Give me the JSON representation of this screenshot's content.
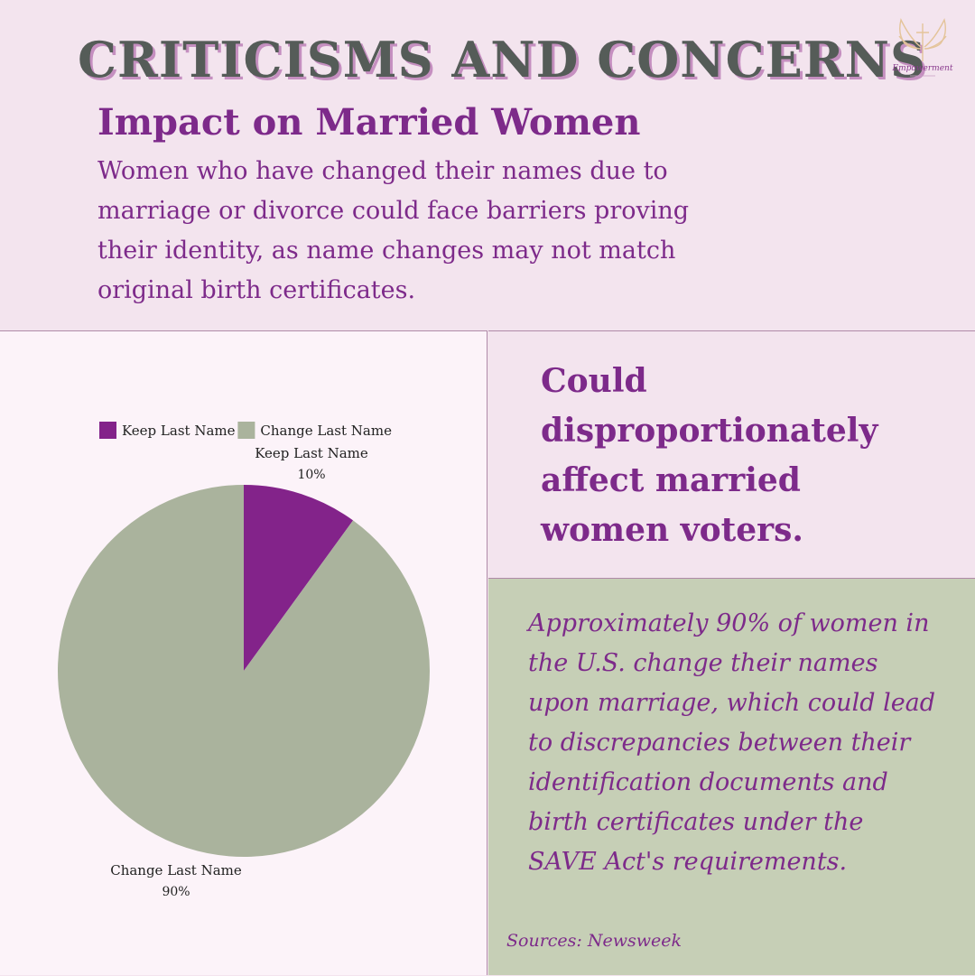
{
  "header": {
    "title": "CRITICISMS AND CONCERNS",
    "subtitle": "Impact on Married Women",
    "intro": "Women who have changed their names due to marriage or divorce could face barriers proving their identity, as name changes may not match original birth certificates.",
    "logo_text": "Empowerment"
  },
  "callout": {
    "text": "Could disproportionately affect married women voters."
  },
  "fact": {
    "text": "Approximately 90% of women in the U.S. change their names upon marriage, which could lead to discrepancies between their identification documents and birth certificates under the SAVE Act's requirements.",
    "source": "Sources: Newsweek"
  },
  "colors": {
    "purple": "#83238a",
    "sage": "#aab39d"
  },
  "chart_data": {
    "type": "pie",
    "title": "",
    "legend_position": "top",
    "slices": [
      {
        "label": "Keep Last Name",
        "value": 10,
        "value_label": "10%",
        "color": "#83238a"
      },
      {
        "label": "Change Last Name",
        "value": 90,
        "value_label": "90%",
        "color": "#aab39d"
      }
    ]
  }
}
